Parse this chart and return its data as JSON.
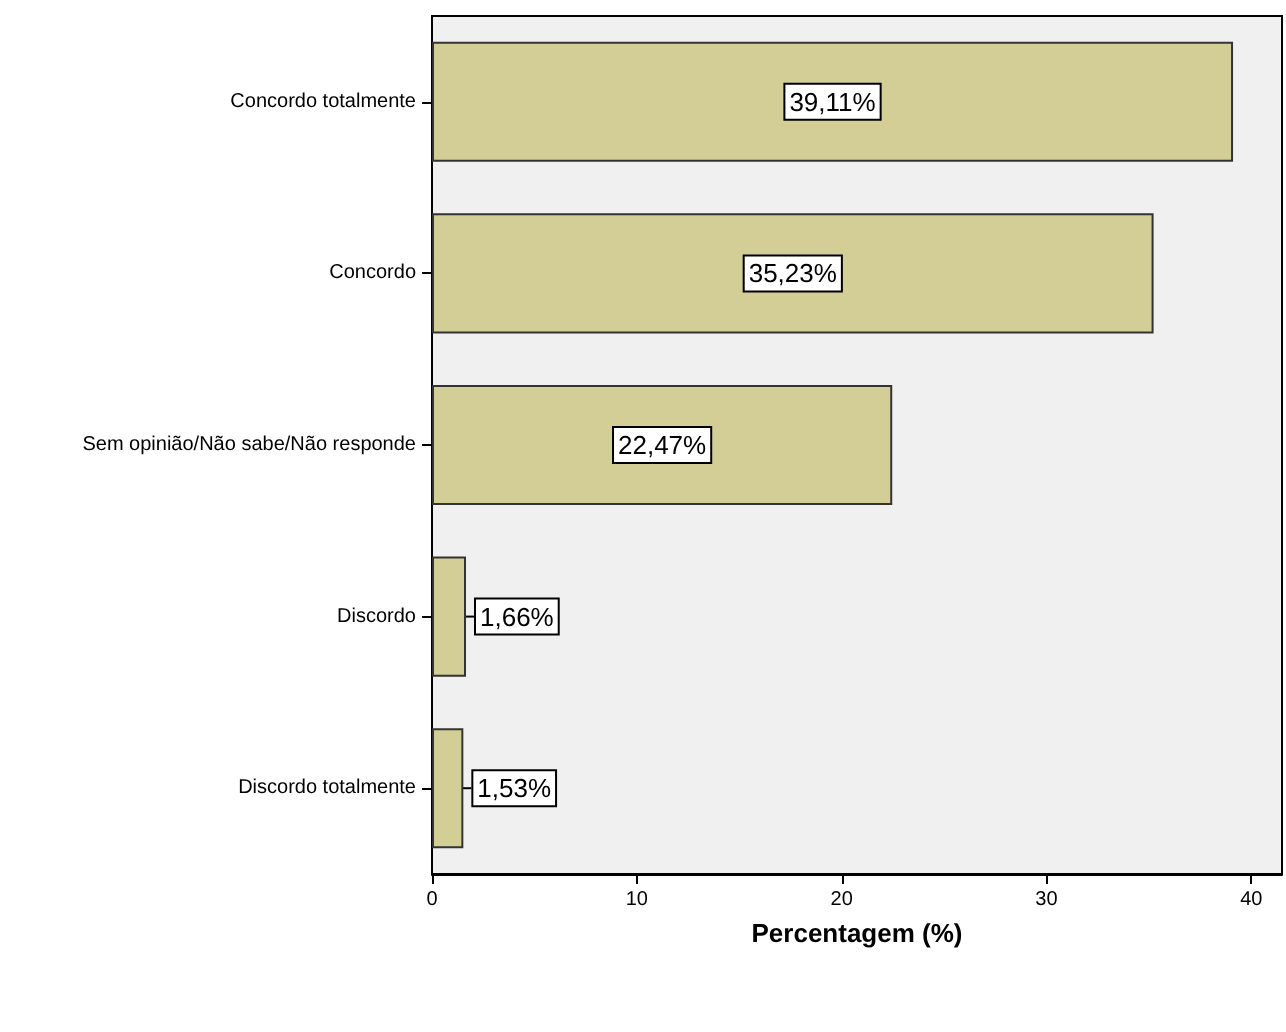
{
  "chart_data": {
    "type": "bar",
    "orientation": "horizontal",
    "xlabel": "Percentagem (%)",
    "categories": [
      "Concordo totalmente",
      "Concordo",
      "Sem opinião/Não sabe/Não responde",
      "Discordo",
      "Discordo totalmente"
    ],
    "values": [
      39.11,
      35.23,
      22.47,
      1.66,
      1.53
    ],
    "value_labels": [
      "39,11%",
      "35,23%",
      "22,47%",
      "1,66%",
      "1,53%"
    ],
    "color": "#d3cd96",
    "xlim": [
      0,
      41.5
    ],
    "xticks": [
      0,
      10,
      20,
      30,
      40
    ],
    "grid": false
  }
}
